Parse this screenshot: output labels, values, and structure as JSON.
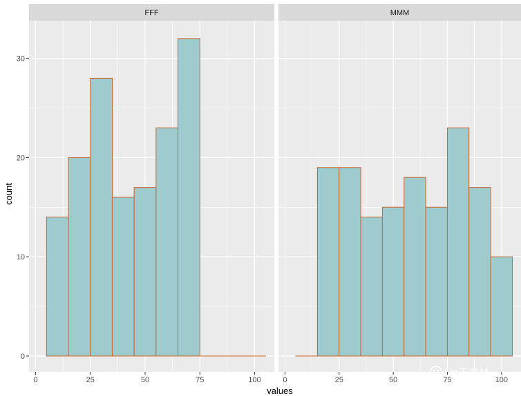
{
  "chart_data": {
    "type": "bar",
    "subtype": "faceted-histogram",
    "xlabel": "values",
    "ylabel": "count",
    "xlim": [
      -3,
      109
    ],
    "ylim": [
      -1.6,
      33.8
    ],
    "x_ticks": [
      0,
      25,
      50,
      75,
      100
    ],
    "y_ticks": [
      0,
      10,
      20,
      30
    ],
    "grid": true,
    "legend": "none",
    "bin_edges": [
      5,
      15,
      25,
      35,
      45,
      55,
      65,
      75,
      85,
      95,
      105
    ],
    "facets": [
      {
        "name": "FFF",
        "counts": [
          14,
          20,
          28,
          16,
          17,
          23,
          32,
          0,
          0,
          0
        ]
      },
      {
        "name": "MMM",
        "counts": [
          0,
          19,
          19,
          14,
          15,
          18,
          15,
          23,
          17,
          10
        ]
      }
    ],
    "colors": {
      "fill": "#9ecbcd",
      "outline": "#c8642b",
      "panel": "#ebebeb",
      "strip": "#d9d9d9",
      "grid": "#ffffff"
    }
  },
  "watermark": {
    "text": "Lin王发林"
  }
}
